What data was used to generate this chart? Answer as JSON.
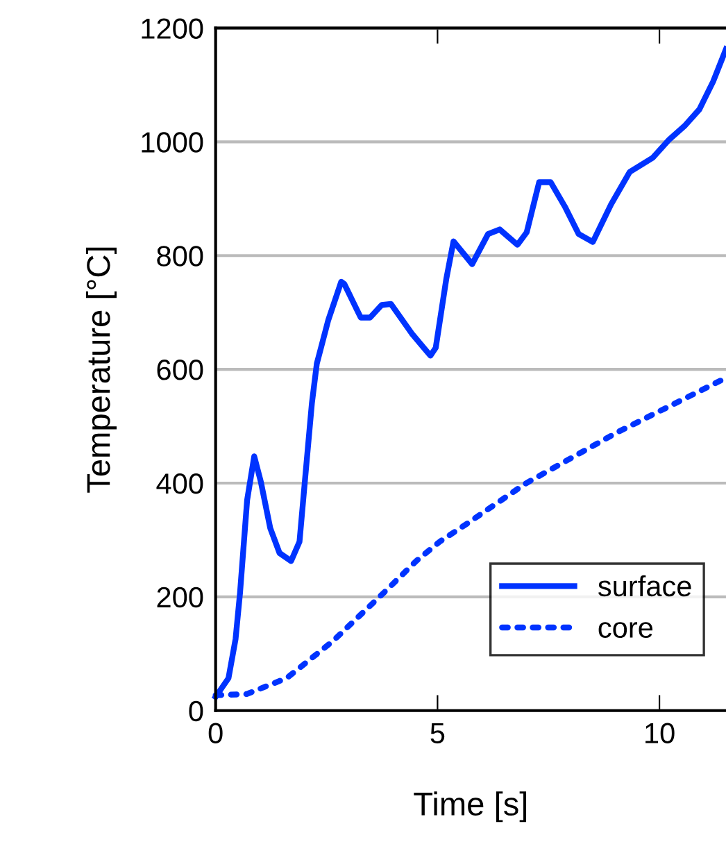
{
  "chart_data": {
    "type": "line",
    "xlabel": "Time [s]",
    "ylabel": "Temperature [°C]",
    "xlim": [
      0,
      11.5
    ],
    "ylim": [
      0,
      1200
    ],
    "xticks": [
      0,
      5,
      10
    ],
    "yticks": [
      0,
      200,
      400,
      600,
      800,
      1000,
      1200
    ],
    "grid": "y",
    "legend": "bottom right",
    "series": [
      {
        "name": "surface",
        "color": "#0033ff",
        "line_style": "solid",
        "x": [
          0,
          0.29,
          0.45,
          0.55,
          0.71,
          0.87,
          1.02,
          1.23,
          1.44,
          1.7,
          1.89,
          2.02,
          2.17,
          2.28,
          2.54,
          2.83,
          2.9,
          3.27,
          3.48,
          3.74,
          3.95,
          4.42,
          4.84,
          4.96,
          5.2,
          5.36,
          5.78,
          6.14,
          6.4,
          6.8,
          7.01,
          7.29,
          7.55,
          7.87,
          8.18,
          8.5,
          8.91,
          9.33,
          9.85,
          10.22,
          10.58,
          10.9,
          11.21,
          11.5
        ],
        "values": [
          24,
          57,
          126,
          207,
          370,
          447,
          402,
          321,
          277,
          263,
          297,
          411,
          541,
          610,
          687,
          754,
          750,
          691,
          691,
          713,
          715,
          663,
          624,
          638,
          760,
          825,
          785,
          838,
          846,
          819,
          841,
          929,
          929,
          886,
          838,
          824,
          890,
          947,
          972,
          1004,
          1029,
          1057,
          1106,
          1163
        ]
      },
      {
        "name": "core",
        "color": "#0033ff",
        "line_style": "dotted",
        "x": [
          0,
          0.7,
          1.6,
          2.64,
          3.84,
          4.52,
          5.05,
          5.67,
          6.98,
          9.02,
          11.5
        ],
        "values": [
          27,
          29,
          57,
          122,
          211,
          263,
          297,
          329,
          399,
          488,
          585
        ]
      }
    ]
  }
}
